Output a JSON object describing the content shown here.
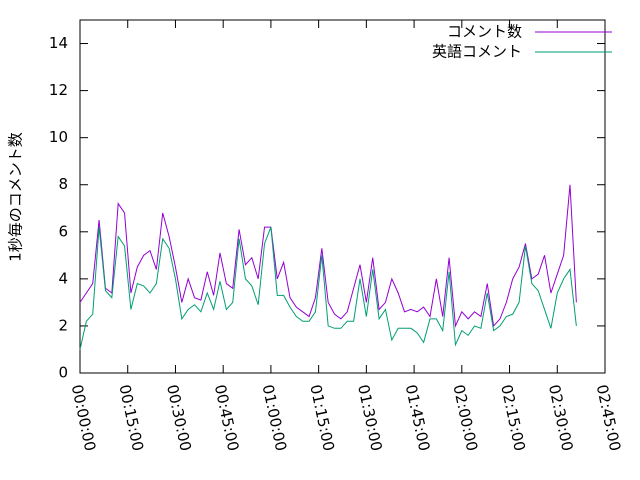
{
  "chart_data": {
    "type": "line",
    "ylabel": "1秒毎のコメント数",
    "x": [
      0,
      120,
      240,
      360,
      480,
      600,
      720,
      840,
      960,
      1080,
      1200,
      1320,
      1440,
      1560,
      1680,
      1800,
      1920,
      2040,
      2160,
      2280,
      2400,
      2520,
      2640,
      2760,
      2880,
      3000,
      3120,
      3240,
      3360,
      3480,
      3600,
      3720,
      3840,
      3960,
      4080,
      4200,
      4320,
      4440,
      4560,
      4680,
      4800,
      4920,
      5040,
      5160,
      5280,
      5400,
      5520,
      5640,
      5760,
      5880,
      6000,
      6120,
      6240,
      6360,
      6480,
      6600,
      6720,
      6840,
      6960,
      7080,
      7200,
      7320,
      7440,
      7560,
      7680,
      7800,
      7920,
      8040,
      8160,
      8280,
      8400,
      8520,
      8640,
      8760,
      8880,
      9000,
      9120,
      9240,
      9360
    ],
    "series": [
      {
        "name": "コメント数",
        "color": "#9400d3",
        "values": [
          3.0,
          3.4,
          3.8,
          6.5,
          3.6,
          3.4,
          7.2,
          6.8,
          3.4,
          4.5,
          5.0,
          5.2,
          4.4,
          6.8,
          5.8,
          4.5,
          3.0,
          4.0,
          3.2,
          3.1,
          4.3,
          3.3,
          5.1,
          3.8,
          3.6,
          6.1,
          4.6,
          4.9,
          4.0,
          6.2,
          6.2,
          4.0,
          4.7,
          3.2,
          2.8,
          2.6,
          2.4,
          3.2,
          5.3,
          3.0,
          2.5,
          2.3,
          2.6,
          3.6,
          4.6,
          3.0,
          4.9,
          2.7,
          3.0,
          4.0,
          3.4,
          2.6,
          2.7,
          2.6,
          2.8,
          2.4,
          4.0,
          2.4,
          4.9,
          2.0,
          2.6,
          2.3,
          2.6,
          2.4,
          3.8,
          2.0,
          2.3,
          3.0,
          4.0,
          4.5,
          5.5,
          4.0,
          4.2,
          5.0,
          3.4,
          4.2,
          5.0,
          8.0,
          3.0
        ]
      },
      {
        "name": "英語コメント",
        "color": "#009e73",
        "values": [
          1.0,
          2.2,
          2.5,
          6.2,
          3.5,
          3.2,
          5.8,
          5.4,
          2.7,
          3.8,
          3.7,
          3.4,
          3.8,
          5.7,
          5.3,
          4.0,
          2.3,
          2.7,
          2.9,
          2.6,
          3.4,
          2.7,
          3.9,
          2.7,
          3.0,
          5.7,
          4.0,
          3.7,
          2.9,
          5.5,
          6.2,
          3.3,
          3.3,
          2.8,
          2.4,
          2.2,
          2.2,
          2.6,
          5.0,
          2.0,
          1.9,
          1.9,
          2.2,
          2.2,
          4.0,
          2.4,
          4.4,
          2.3,
          2.7,
          1.4,
          1.9,
          1.9,
          1.9,
          1.7,
          1.3,
          2.3,
          2.3,
          1.8,
          4.3,
          1.2,
          1.8,
          1.6,
          2.0,
          1.9,
          3.4,
          1.8,
          2.0,
          2.4,
          2.5,
          3.0,
          5.4,
          3.8,
          3.5,
          2.7,
          1.9,
          3.4,
          4.0,
          4.4,
          2.0
        ]
      }
    ],
    "xlim": [
      0,
      9900
    ],
    "xticks": [
      {
        "value": 0,
        "label": "00:00:00"
      },
      {
        "value": 900,
        "label": "00:15:00"
      },
      {
        "value": 1800,
        "label": "00:30:00"
      },
      {
        "value": 2700,
        "label": "00:45:00"
      },
      {
        "value": 3600,
        "label": "01:00:00"
      },
      {
        "value": 4500,
        "label": "01:15:00"
      },
      {
        "value": 5400,
        "label": "01:30:00"
      },
      {
        "value": 6300,
        "label": "01:45:00"
      },
      {
        "value": 7200,
        "label": "02:00:00"
      },
      {
        "value": 8100,
        "label": "02:15:00"
      },
      {
        "value": 9000,
        "label": "02:30:00"
      },
      {
        "value": 9900,
        "label": "02:45:00"
      }
    ],
    "ylim": [
      0,
      15
    ],
    "yticks": [
      0,
      2,
      4,
      6,
      8,
      10,
      12,
      14
    ],
    "legend": "top-right",
    "grid": false
  }
}
